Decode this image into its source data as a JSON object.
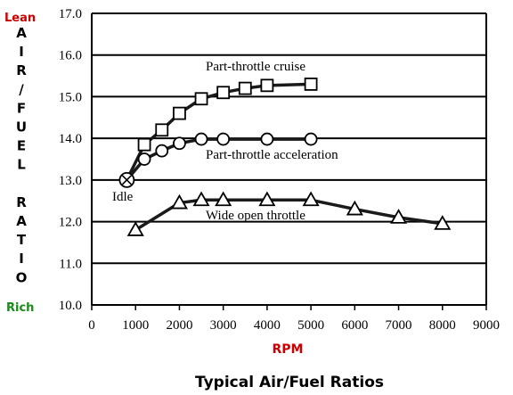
{
  "chart_data": {
    "type": "line",
    "title": "Typical Air/Fuel Ratios",
    "xlabel": "RPM",
    "ylabel": "AIR/FUEL RATIO",
    "ylabel_top": "Lean",
    "ylabel_bottom": "Rich",
    "xlim": [
      0,
      9000
    ],
    "ylim": [
      10.0,
      17.0
    ],
    "x_ticks": [
      "0",
      "1000",
      "2000",
      "3000",
      "4000",
      "5000",
      "6000",
      "7000",
      "8000",
      "9000"
    ],
    "y_ticks": [
      "10.0",
      "11.0",
      "12.0",
      "13.0",
      "14.0",
      "15.0",
      "16.0",
      "17.0"
    ],
    "grid": "horizontal",
    "legend": "none",
    "series": [
      {
        "name": "Part-throttle cruise",
        "marker": "square",
        "x": [
          800,
          1200,
          1600,
          2000,
          2500,
          3000,
          3500,
          4000,
          5000
        ],
        "y": [
          13.0,
          13.85,
          14.2,
          14.6,
          14.95,
          15.1,
          15.2,
          15.27,
          15.3
        ]
      },
      {
        "name": "Part-throttle acceleration",
        "marker": "circle",
        "x": [
          800,
          1200,
          1600,
          2000,
          2500,
          3000,
          4000,
          5000
        ],
        "y": [
          13.0,
          13.5,
          13.7,
          13.88,
          13.98,
          13.98,
          13.98,
          13.98
        ]
      },
      {
        "name": "Wide open throttle",
        "marker": "triangle",
        "x": [
          1000,
          2000,
          2500,
          3000,
          4000,
          5000,
          6000,
          7000,
          8000
        ],
        "y": [
          11.8,
          12.45,
          12.52,
          12.52,
          12.52,
          12.52,
          12.3,
          12.1,
          11.95
        ]
      }
    ],
    "idle_point": {
      "label": "Idle",
      "x": 800,
      "y": 13.0
    },
    "annotations": [
      "Part-throttle cruise",
      "Part-throttle acceleration",
      "Wide open throttle",
      "Idle"
    ]
  }
}
